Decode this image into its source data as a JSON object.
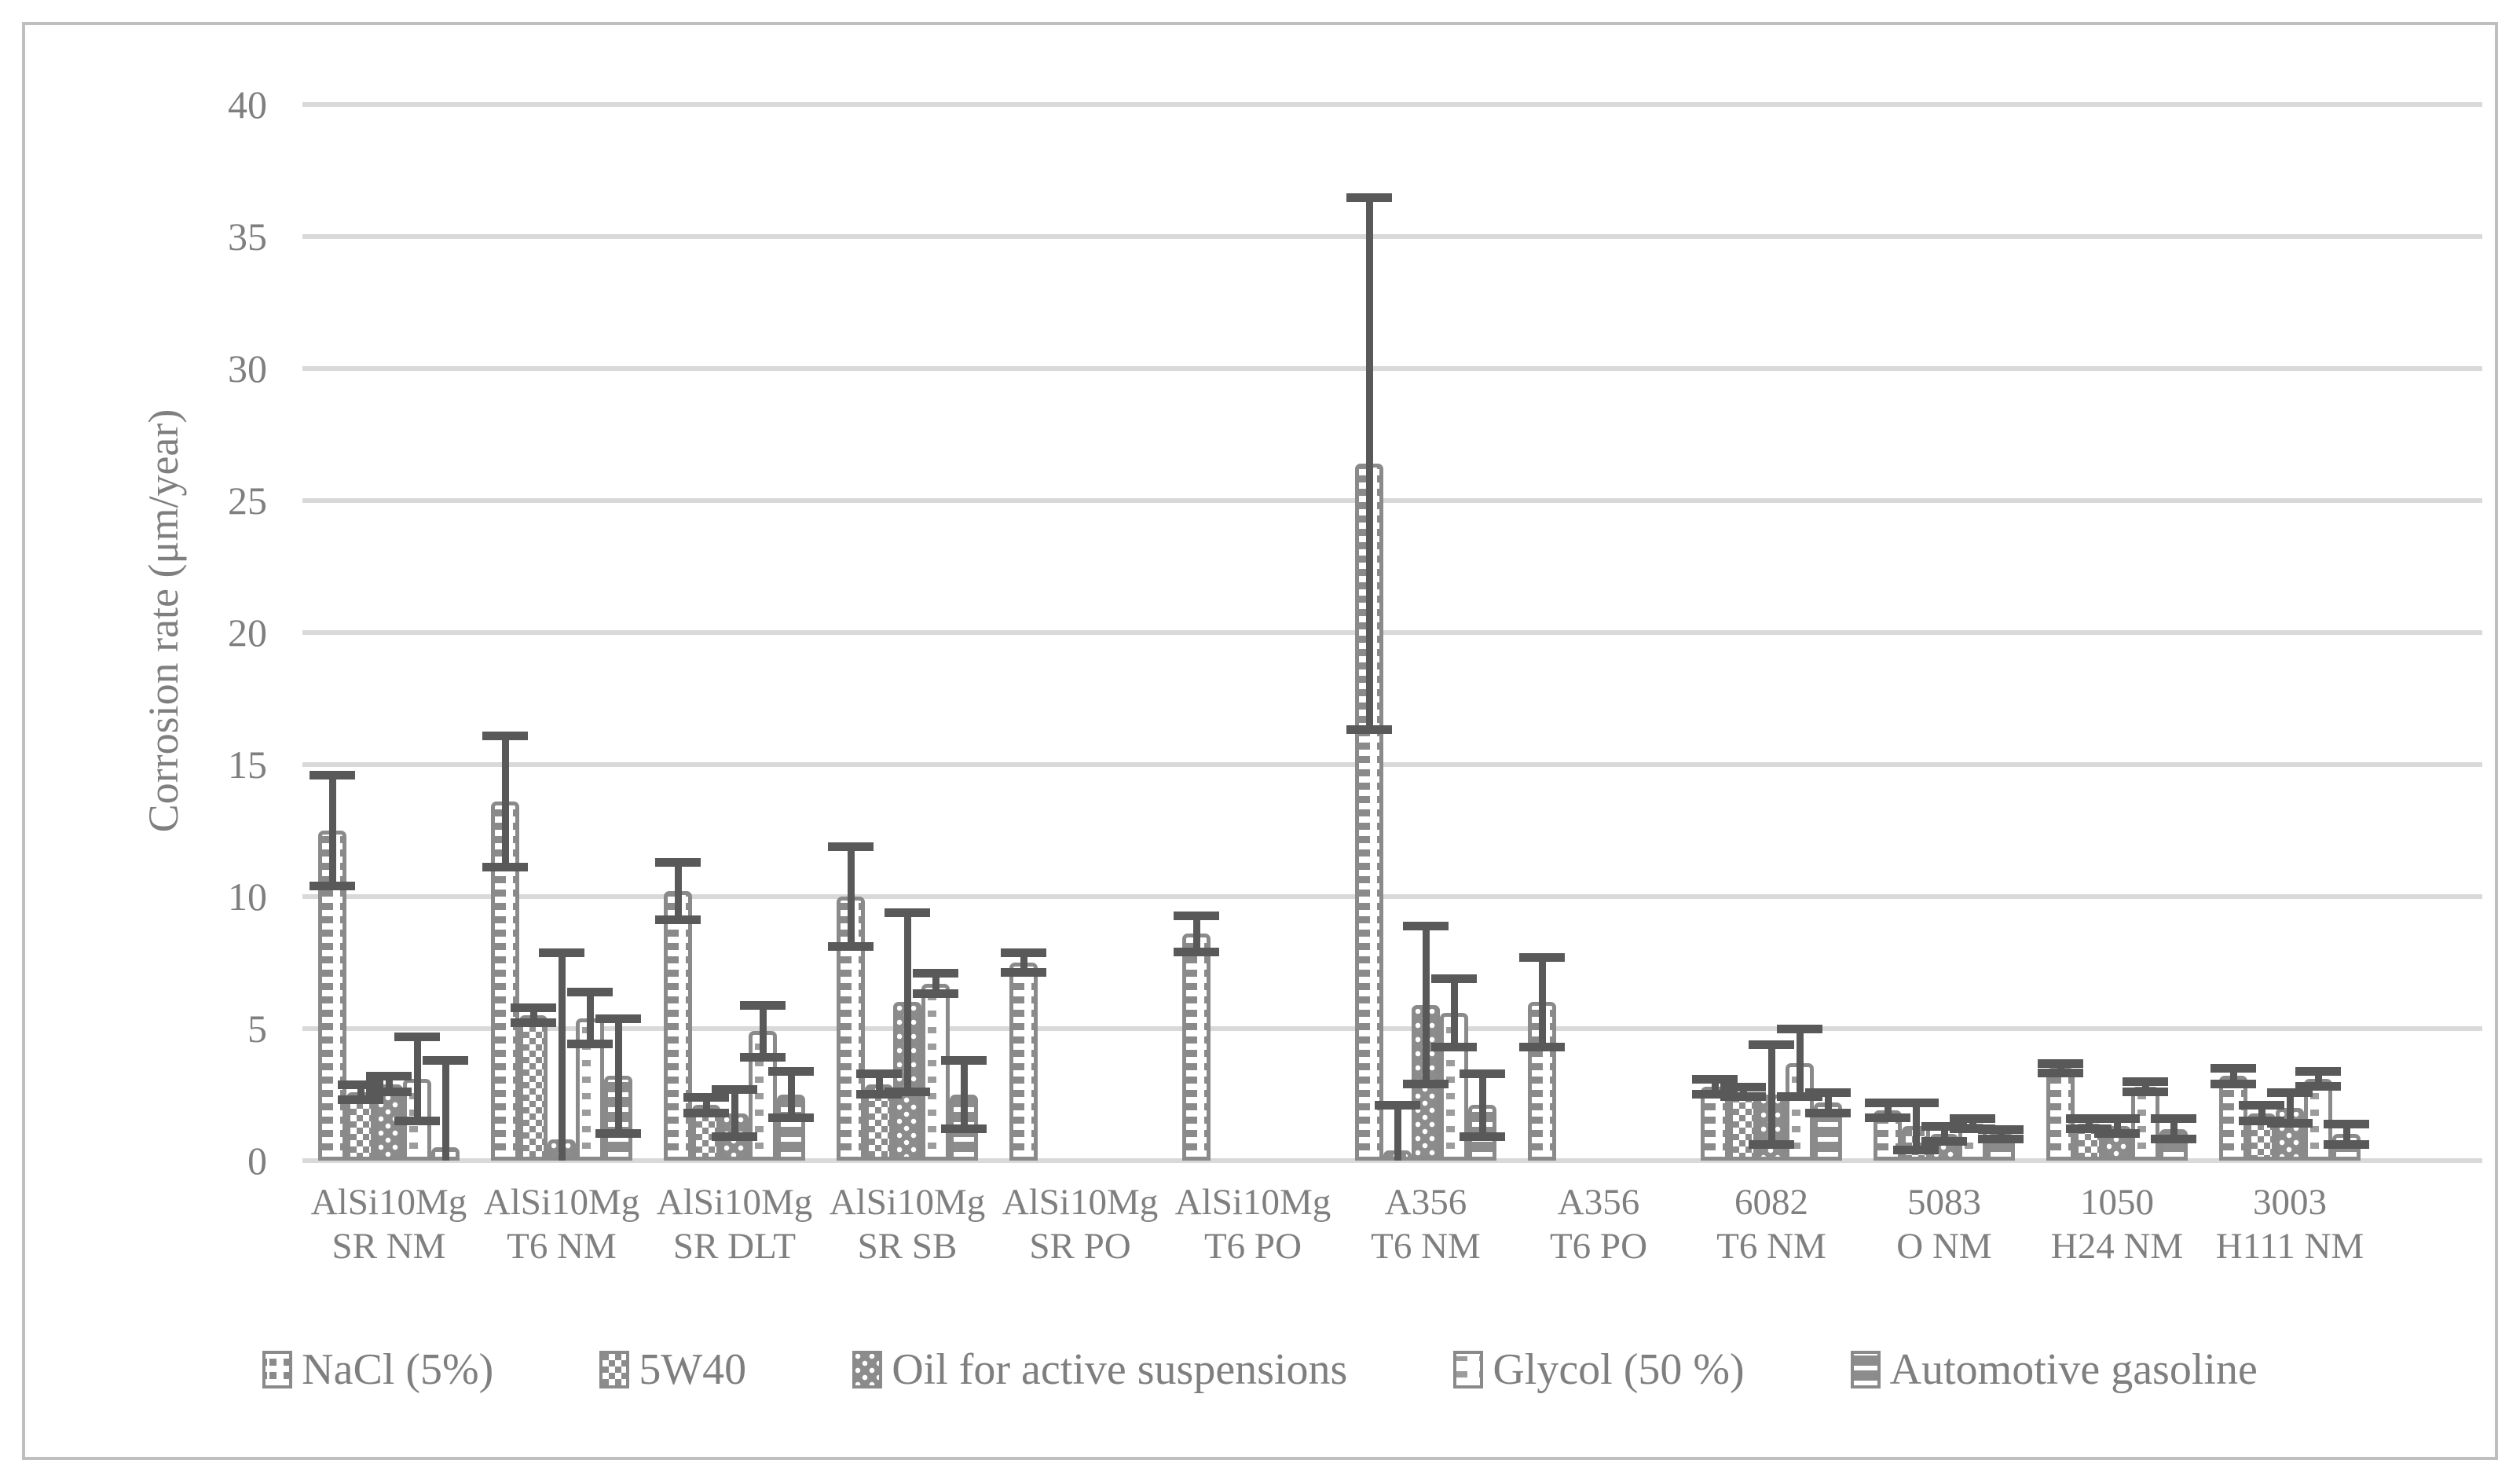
{
  "chart_data": {
    "type": "bar",
    "title": "",
    "xlabel": "",
    "ylabel": "Corrosion rate (μm/year)",
    "ylim": [
      0,
      40
    ],
    "yticks": [
      0,
      5,
      10,
      15,
      20,
      25,
      30,
      35,
      40
    ],
    "grid": "horizontal",
    "legend_position": "bottom",
    "error_bars": true,
    "categories": [
      [
        "AlSi10Mg",
        "SR NM"
      ],
      [
        "AlSi10Mg",
        "T6 NM"
      ],
      [
        "AlSi10Mg",
        "SR DLT"
      ],
      [
        "AlSi10Mg",
        "SR SB"
      ],
      [
        "AlSi10Mg",
        "SR PO"
      ],
      [
        "AlSi10Mg",
        "T6 PO"
      ],
      [
        "A356",
        "T6 NM"
      ],
      [
        "A356",
        "T6 PO"
      ],
      [
        "6082",
        "T6 NM"
      ],
      [
        "5083",
        "O NM"
      ],
      [
        "1050",
        "H24 NM"
      ],
      [
        "3003",
        "H111 NM"
      ]
    ],
    "series": [
      {
        "name": "NaCl (5%)",
        "pattern": "dotted-columns",
        "values": [
          12.5,
          13.6,
          10.2,
          10.0,
          7.5,
          8.6,
          26.4,
          6.0,
          2.8,
          1.9,
          3.5,
          3.2
        ],
        "errors": [
          2.1,
          2.5,
          1.1,
          1.9,
          0.4,
          0.7,
          10.1,
          1.7,
          0.3,
          0.3,
          0.2,
          0.3
        ]
      },
      {
        "name": "5W40",
        "pattern": "checker",
        "values": [
          2.6,
          5.5,
          2.1,
          2.9,
          0,
          0,
          0.4,
          0,
          2.6,
          1.3,
          1.4,
          1.8
        ],
        "errors": [
          0.3,
          0.3,
          0.3,
          0.4,
          0,
          0,
          1.7,
          0,
          0.2,
          0.9,
          0.2,
          0.3
        ]
      },
      {
        "name": "Oil for active suspensions",
        "pattern": "dots",
        "values": [
          2.9,
          0.8,
          1.8,
          6.0,
          0,
          0,
          5.9,
          0,
          2.5,
          1.0,
          1.3,
          2.0
        ],
        "errors": [
          0.3,
          7.1,
          0.9,
          3.4,
          0,
          0,
          3.0,
          0,
          1.9,
          0.3,
          0.3,
          0.6
        ]
      },
      {
        "name": "Glycol (50 %)",
        "pattern": "sparse-dashes",
        "values": [
          3.1,
          5.4,
          4.9,
          6.7,
          0,
          0,
          5.6,
          0,
          3.7,
          1.4,
          2.8,
          3.1
        ],
        "errors": [
          1.6,
          1.0,
          1.0,
          0.4,
          0,
          0,
          1.3,
          0,
          1.3,
          0.2,
          0.2,
          0.3
        ]
      },
      {
        "name": "Automotive gasoline",
        "pattern": "horizontal-lines",
        "values": [
          0.5,
          3.2,
          2.5,
          2.5,
          0,
          0,
          2.1,
          0,
          2.2,
          1.0,
          1.2,
          1.0
        ],
        "errors": [
          3.3,
          2.2,
          0.9,
          1.3,
          0,
          0,
          1.2,
          0,
          0.4,
          0.2,
          0.4,
          0.4
        ]
      }
    ]
  },
  "colors": {
    "bar_gray": "#8c8c8c",
    "bar_border": "#8a8a8a",
    "error_bar": "#595959",
    "gridline": "#d9d9d9",
    "text": "#7f7f7f",
    "frame": "#bfbfbf",
    "background": "#ffffff"
  }
}
